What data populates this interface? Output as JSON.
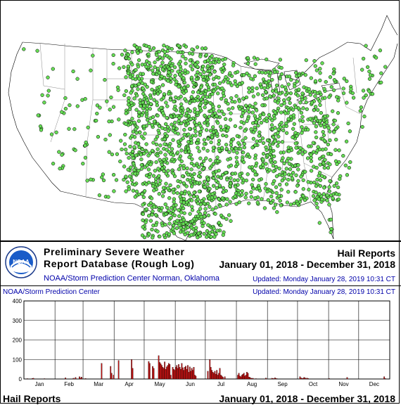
{
  "colors": {
    "marker_fill": "#66dd55",
    "marker_stroke": "#000000",
    "bar_fill": "#cc1111",
    "link_blue": "#0000aa"
  },
  "map": {
    "marker_symbol": "hail-report-marker"
  },
  "legend": {
    "title_line_1": "Preliminary Severe Weather",
    "title_line_2": "Report Database (Rough Log)",
    "org_line": "NOAA/Storm Prediction Center   Norman, Oklahoma",
    "logo_text": "NOAA",
    "report_type": "Hail Reports",
    "date_range": "January 01, 2018 - December 31, 2018",
    "updated": "Updated:  Monday January 28, 2019 10:31 CT"
  },
  "chart_header": {
    "left": "NOAA/Storm Prediction Center",
    "right": "Updated:  Monday January 28, 2019 10:31 CT"
  },
  "chart_data": {
    "type": "bar",
    "y_ticks": [
      "0",
      "100",
      "200",
      "300",
      "400"
    ],
    "ylim": [
      0,
      400
    ],
    "months": [
      "Jan",
      "Feb",
      "Mar",
      "Apr",
      "May",
      "Jun",
      "Jul",
      "Aug",
      "Sep",
      "Oct",
      "Nov",
      "Dec"
    ],
    "days_in_year": 365,
    "daily_values": [
      0,
      0,
      0,
      2,
      0,
      0,
      0,
      0,
      3,
      4,
      0,
      0,
      0,
      0,
      0,
      0,
      0,
      0,
      0,
      0,
      2,
      0,
      0,
      0,
      0,
      0,
      0,
      0,
      0,
      0,
      0,
      0,
      0,
      0,
      0,
      0,
      0,
      0,
      0,
      0,
      0,
      6,
      0,
      0,
      0,
      0,
      0,
      0,
      0,
      4,
      0,
      8,
      0,
      0,
      0,
      12,
      5,
      10,
      0,
      0,
      0,
      3,
      0,
      0,
      0,
      0,
      0,
      0,
      0,
      0,
      0,
      0,
      0,
      0,
      0,
      0,
      0,
      80,
      0,
      0,
      0,
      0,
      0,
      0,
      0,
      0,
      65,
      30,
      0,
      20,
      0,
      0,
      0,
      0,
      95,
      0,
      0,
      0,
      0,
      0,
      0,
      0,
      0,
      0,
      0,
      0,
      0,
      100,
      55,
      0,
      0,
      0,
      0,
      0,
      0,
      0,
      0,
      0,
      0,
      0,
      0,
      0,
      0,
      0,
      90,
      80,
      0,
      0,
      65,
      55,
      0,
      0,
      0,
      0,
      120,
      85,
      78,
      70,
      60,
      55,
      88,
      50,
      62,
      70,
      80,
      75,
      20,
      0,
      60,
      50,
      45,
      60,
      70,
      55,
      75,
      60,
      50,
      80,
      58,
      45,
      60,
      66,
      50,
      70,
      35,
      62,
      40,
      55,
      45,
      60,
      20,
      15,
      0,
      0,
      0,
      0,
      0,
      0,
      0,
      0,
      0,
      0,
      0,
      40,
      0,
      100,
      60,
      45,
      35,
      30,
      40,
      25,
      45,
      20,
      30,
      55,
      20,
      15,
      10,
      0,
      12,
      0,
      0,
      0,
      0,
      0,
      0,
      0,
      0,
      0,
      0,
      0,
      0,
      20,
      30,
      15,
      12,
      20,
      25,
      30,
      15,
      20,
      35,
      30,
      10,
      8,
      5,
      3,
      4,
      0,
      0,
      2,
      0,
      0,
      0,
      0,
      0,
      0,
      0,
      0,
      0,
      5,
      0,
      0,
      0,
      0,
      0,
      4,
      3,
      2,
      6,
      3,
      2,
      0,
      0,
      0,
      0,
      0,
      0,
      0,
      0,
      0,
      0,
      0,
      0,
      0,
      0,
      0,
      0,
      0,
      0,
      0,
      0,
      0,
      0,
      12,
      5,
      4,
      3,
      8,
      6,
      2,
      5,
      3,
      0,
      0,
      0,
      0,
      0,
      0,
      0,
      0,
      0,
      0,
      0,
      0,
      0,
      0,
      0,
      0,
      0,
      0,
      0,
      0,
      3,
      0,
      0,
      0,
      0,
      0,
      0,
      0,
      0,
      0,
      0,
      0,
      0,
      0,
      0,
      0,
      0,
      0,
      8,
      0,
      0,
      0,
      0,
      0,
      0,
      0,
      0,
      0,
      0,
      0,
      0,
      0,
      0,
      0,
      0,
      0,
      0,
      0,
      0,
      0,
      0,
      0,
      0,
      0,
      0,
      0,
      0,
      0,
      0,
      0,
      0,
      0,
      0,
      0,
      0,
      12,
      3
    ]
  },
  "footer": {
    "left": "Hail Reports",
    "right": "January 01, 2018 - December 31, 2018"
  }
}
